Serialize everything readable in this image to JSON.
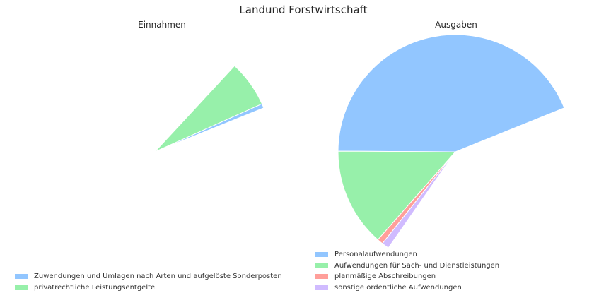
{
  "figure": {
    "title": "Landund Forstwirtschaft"
  },
  "chart_data": [
    {
      "type": "pie",
      "title": "Einnahmen",
      "categories": [
        "Zuwendungen und Umlagen nach Arten und aufgelöste Sonderposten",
        "privatrechtliche Leistungsentgelte"
      ],
      "values": [
        0.6,
        6.4
      ],
      "start_angle_deg": 22,
      "colors": [
        "#92c6ff",
        "#97f0aa"
      ],
      "legend_location": "lower-left"
    },
    {
      "type": "pie",
      "title": "Ausgaben",
      "categories": [
        "Personalaufwendungen",
        "Aufwendungen für Sach- und Dienstleistungen",
        "planmäßige Abschreibungen",
        "sonstige ordentliche Aufwendungen"
      ],
      "values": [
        43.8,
        13.6,
        0.8,
        1.0
      ],
      "start_angle_deg": 22,
      "colors": [
        "#92c6ff",
        "#97f0aa",
        "#ff9f9a",
        "#d0bbff"
      ],
      "legend_location": "lower-center"
    }
  ]
}
